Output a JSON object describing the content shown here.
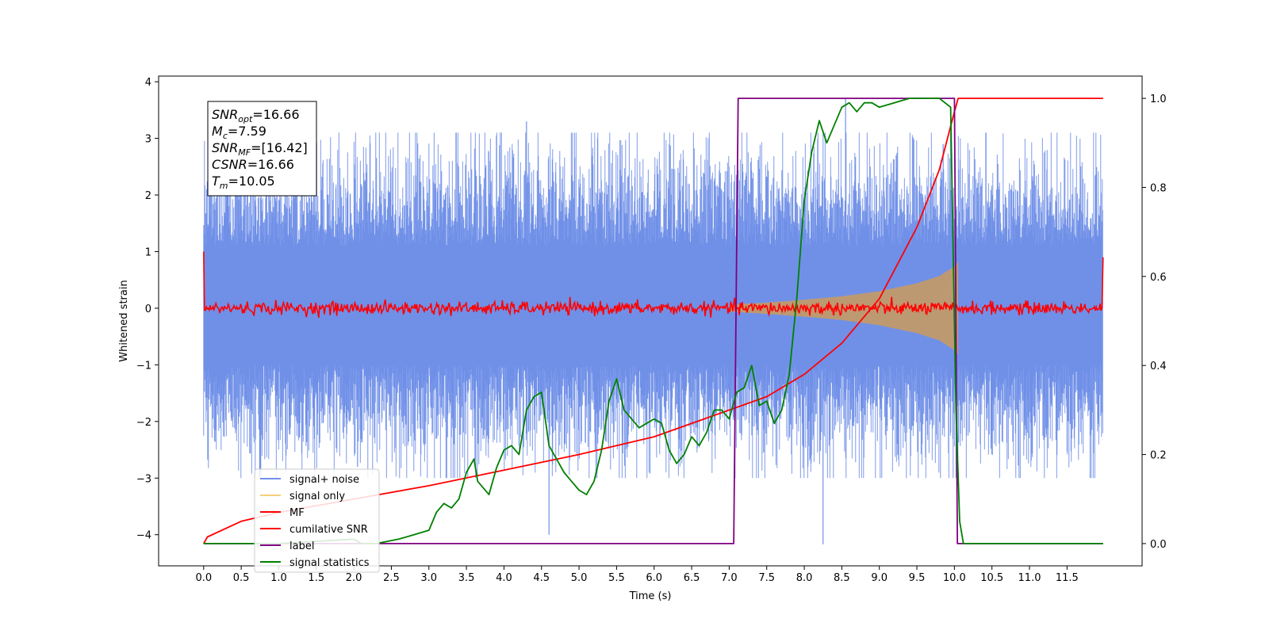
{
  "chart_data": {
    "type": "line",
    "xlabel": "Time (s)",
    "ylabel": "Whitened strain",
    "xlim": [
      -0.6,
      12.5
    ],
    "ylim": [
      -4.55,
      4.1
    ],
    "y2lim": [
      -0.05,
      1.05
    ],
    "grid": false,
    "x_ticks": [
      "0.0",
      "0.5",
      "1.0",
      "1.5",
      "2.0",
      "2.5",
      "3.0",
      "3.5",
      "4.0",
      "4.5",
      "5.0",
      "5.5",
      "6.0",
      "6.5",
      "7.0",
      "7.5",
      "8.0",
      "8.5",
      "9.0",
      "9.5",
      "10.0",
      "10.5",
      "11.0",
      "11.5"
    ],
    "y_ticks": [
      "4",
      "3",
      "2",
      "1",
      "0",
      "−1",
      "−2",
      "−3",
      "−4"
    ],
    "y2_ticks": [
      "1.0",
      "0.8",
      "0.6",
      "0.4",
      "0.2",
      "0.0"
    ],
    "annotation": {
      "lines": [
        {
          "sym": "SNR",
          "sub": "opt",
          "value": "=16.66"
        },
        {
          "sym": "M",
          "sub": "c",
          "value": "=7.59"
        },
        {
          "sym": "SNR",
          "sub": "MF",
          "value": "=[16.42]"
        },
        {
          "sym": "CSNR",
          "sub": "",
          "value": "=16.66"
        },
        {
          "sym": "T",
          "sub": "m",
          "value": "=10.05"
        }
      ]
    },
    "legend": {
      "placement": "lower-left",
      "entries": [
        {
          "name": "signal+ noise",
          "color": "#7090e8"
        },
        {
          "name": "signal only",
          "color": "#f7cf7a"
        },
        {
          "name": "MF",
          "color": "#ff0000"
        },
        {
          "name": "cumilative SNR",
          "color": "#ff0000"
        },
        {
          "name": "label",
          "color": "#800080"
        },
        {
          "name": "signal statistics",
          "color": "#008000"
        }
      ]
    },
    "series": [
      {
        "name": "signal+ noise",
        "axis": "left",
        "color": "#7090e8",
        "style": "noise band (approx. N(0,1) whitened noise)",
        "t_range": [
          0.0,
          11.98
        ],
        "envelope": [
          -2.6,
          2.7
        ],
        "outliers": [
          3.3,
          -4.0,
          -4.17,
          3.7
        ]
      },
      {
        "name": "signal only",
        "axis": "left",
        "color": "#f7cf7a",
        "style": "chirp envelope",
        "t": [
          7.0,
          7.5,
          8.0,
          8.5,
          9.0,
          9.5,
          9.8,
          10.0,
          10.05
        ],
        "amplitude": [
          0.06,
          0.1,
          0.15,
          0.21,
          0.3,
          0.44,
          0.57,
          0.74,
          0.82
        ]
      },
      {
        "name": "MF",
        "axis": "left",
        "color": "#ff0000",
        "style": "noisy line near zero",
        "t_range": [
          0.0,
          11.98
        ],
        "level": 0.0,
        "jitter": 0.08,
        "edge_value": [
          1.0,
          0.9
        ]
      },
      {
        "name": "cumilative SNR",
        "axis": "right",
        "color": "#ff0000",
        "t": [
          0.0,
          0.05,
          0.5,
          1.0,
          2.0,
          3.0,
          4.0,
          5.0,
          6.0,
          7.0,
          7.5,
          8.0,
          8.5,
          9.0,
          9.5,
          9.8,
          10.0,
          10.05,
          11.98
        ],
        "values": [
          0.0,
          0.015,
          0.05,
          0.07,
          0.1,
          0.13,
          0.165,
          0.2,
          0.24,
          0.3,
          0.33,
          0.38,
          0.45,
          0.55,
          0.71,
          0.84,
          0.97,
          1.0,
          1.0
        ]
      },
      {
        "name": "label",
        "axis": "right",
        "color": "#800080",
        "t": [
          0.0,
          7.06,
          7.12,
          10.0,
          10.04,
          11.98
        ],
        "values": [
          0.0,
          0.0,
          1.0,
          1.0,
          0.0,
          0.0
        ]
      },
      {
        "name": "signal statistics",
        "axis": "right",
        "color": "#008000",
        "t": [
          0.0,
          1.0,
          2.0,
          2.1,
          2.3,
          2.6,
          2.8,
          3.0,
          3.1,
          3.2,
          3.3,
          3.4,
          3.5,
          3.6,
          3.65,
          3.7,
          3.8,
          3.9,
          4.0,
          4.1,
          4.2,
          4.3,
          4.4,
          4.5,
          4.6,
          4.7,
          4.8,
          4.9,
          5.0,
          5.1,
          5.2,
          5.3,
          5.4,
          5.5,
          5.6,
          5.7,
          5.8,
          5.9,
          6.0,
          6.1,
          6.2,
          6.3,
          6.4,
          6.5,
          6.6,
          6.7,
          6.8,
          6.9,
          7.0,
          7.1,
          7.2,
          7.3,
          7.4,
          7.5,
          7.6,
          7.7,
          7.8,
          7.9,
          8.0,
          8.1,
          8.2,
          8.3,
          8.4,
          8.5,
          8.6,
          8.7,
          8.8,
          8.9,
          9.0,
          9.2,
          9.4,
          9.6,
          9.8,
          9.95,
          10.02,
          10.07,
          10.12,
          11.98
        ],
        "values": [
          0.0,
          0.0,
          0.01,
          0.0,
          0.0,
          0.01,
          0.02,
          0.03,
          0.07,
          0.09,
          0.08,
          0.1,
          0.16,
          0.19,
          0.14,
          0.13,
          0.11,
          0.17,
          0.21,
          0.22,
          0.2,
          0.3,
          0.33,
          0.34,
          0.22,
          0.19,
          0.16,
          0.14,
          0.12,
          0.11,
          0.14,
          0.21,
          0.32,
          0.37,
          0.3,
          0.28,
          0.26,
          0.27,
          0.28,
          0.27,
          0.21,
          0.18,
          0.2,
          0.24,
          0.22,
          0.25,
          0.3,
          0.3,
          0.28,
          0.34,
          0.35,
          0.4,
          0.31,
          0.32,
          0.27,
          0.3,
          0.38,
          0.55,
          0.77,
          0.88,
          0.95,
          0.9,
          0.94,
          0.98,
          0.99,
          0.97,
          0.99,
          0.99,
          0.98,
          0.99,
          1.0,
          1.0,
          1.0,
          0.98,
          0.3,
          0.05,
          0.0,
          0.0
        ]
      }
    ]
  }
}
